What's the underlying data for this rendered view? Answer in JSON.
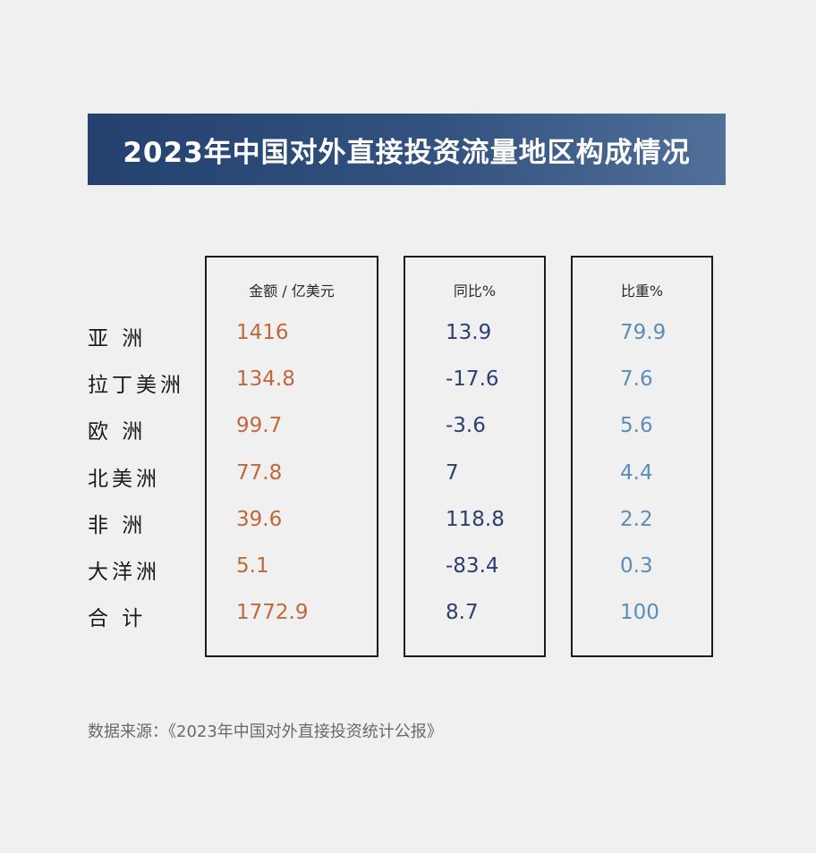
{
  "colors": {
    "title_bg_start": "#24416f",
    "title_bg_end": "#50709a",
    "amount_color": "#c0683a",
    "yoy_color": "#2c3f72",
    "share_color": "#5a8db8"
  },
  "chart_data": {
    "type": "table",
    "title": "2023年中国对外直接投资流量地区构成情况",
    "columns": [
      "金额 / 亿美元",
      "同比%",
      "比重%"
    ],
    "rows": [
      {
        "label": "亚 洲",
        "values": [
          "1416",
          "13.9",
          "79.9"
        ]
      },
      {
        "label": "拉丁美洲",
        "values": [
          "134.8",
          "-17.6",
          "7.6"
        ]
      },
      {
        "label": "欧 洲",
        "values": [
          "99.7",
          "-3.6",
          "5.6"
        ]
      },
      {
        "label": "北美洲",
        "values": [
          "77.8",
          "7",
          "4.4"
        ]
      },
      {
        "label": "非 洲",
        "values": [
          "39.6",
          "118.8",
          "2.2"
        ]
      },
      {
        "label": "大洋洲",
        "values": [
          "5.1",
          "-83.4",
          "0.3"
        ]
      },
      {
        "label": "合 计",
        "values": [
          "1772.9",
          "8.7",
          "100"
        ]
      }
    ],
    "source": "数据来源：《2023年中国对外直接投资统计公报》"
  }
}
